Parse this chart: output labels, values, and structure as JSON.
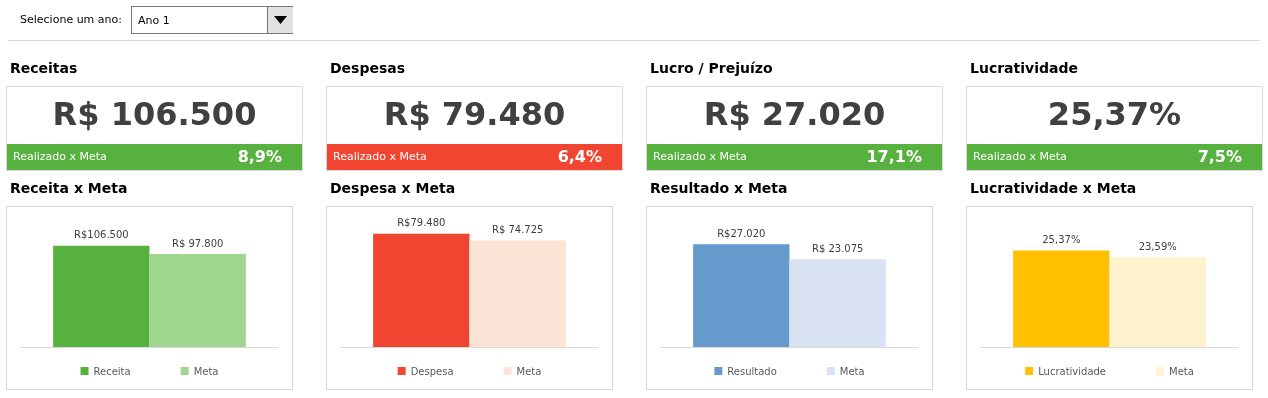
{
  "chart_data": [
    {
      "type": "other",
      "title": "Selecione um ano:",
      "annotations": [
        "Ano 1"
      ]
    },
    {
      "type": "other",
      "title": "Receitas",
      "color": "#57b13f",
      "annotations": [
        "R$ 106.500",
        "Realizado x Meta",
        "8,9%"
      ]
    },
    {
      "type": "other",
      "title": "Despesas",
      "color": "#f04530",
      "annotations": [
        "R$ 79.480",
        "Realizado x Meta",
        "6,4%"
      ]
    },
    {
      "type": "other",
      "title": "Lucro / Prejuízo",
      "color": "#57b13f",
      "annotations": [
        "R$ 27.020",
        "Realizado x Meta",
        "17,1%"
      ]
    },
    {
      "type": "other",
      "title": "Lucratividade",
      "color": "#57b13f",
      "annotations": [
        "25,37%",
        "Realizado x Meta",
        "7,5%"
      ]
    },
    {
      "type": "bar",
      "title": "Receita x Meta",
      "categories": [
        null
      ],
      "legend": "bottom",
      "series": [
        {
          "name": "Receita",
          "color": "#57b13f",
          "values": [
            106500
          ],
          "value_labels": [
            "R$106.500"
          ]
        },
        {
          "name": "Meta",
          "color": "#a0d78f",
          "values": [
            97800
          ],
          "value_labels": [
            "R$ 97.800"
          ]
        }
      ]
    },
    {
      "type": "bar",
      "title": "Despesa x Meta",
      "categories": [
        null
      ],
      "legend": "bottom",
      "series": [
        {
          "name": "Despesa",
          "color": "#f04530",
          "values": [
            79480
          ],
          "value_labels": [
            "R$79.480"
          ]
        },
        {
          "name": "Meta",
          "color": "#fbe3d6",
          "values": [
            74725
          ],
          "value_labels": [
            "R$ 74.725"
          ]
        }
      ]
    },
    {
      "type": "bar",
      "title": "Resultado x Meta",
      "categories": [
        null
      ],
      "legend": "bottom",
      "series": [
        {
          "name": "Resultado",
          "color": "#6699cc",
          "values": [
            27020
          ],
          "value_labels": [
            "R$27.020"
          ]
        },
        {
          "name": "Meta",
          "color": "#dae3f3",
          "values": [
            23075
          ],
          "value_labels": [
            "R$ 23.075"
          ]
        }
      ]
    },
    {
      "type": "bar",
      "title": "Lucratividade x Meta",
      "categories": [
        null
      ],
      "legend": "bottom",
      "series": [
        {
          "name": "Lucratividade",
          "color": "#ffc000",
          "values": [
            25.37
          ],
          "value_labels": [
            "25,37%"
          ]
        },
        {
          "name": "Meta",
          "color": "#fff2cc",
          "values": [
            23.59
          ],
          "value_labels": [
            "23,59%"
          ]
        }
      ]
    }
  ]
}
